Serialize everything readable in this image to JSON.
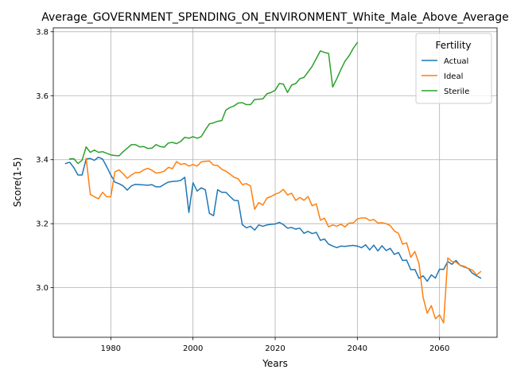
{
  "chart_data": {
    "type": "line",
    "title": "Average_GOVERNMENT_SPENDING_ON_ENVIRONMENT_White_Male_Above_Average",
    "xlabel": "Years",
    "ylabel": "Score(1-5)",
    "xlim": [
      1966,
      2074
    ],
    "ylim": [
      2.845,
      3.812
    ],
    "xticks": [
      1980,
      2000,
      2020,
      2040,
      2060
    ],
    "yticks": [
      3.0,
      3.2,
      3.4,
      3.6,
      3.8
    ],
    "grid": true,
    "legend": {
      "title": "Fertility",
      "placement": "top-right"
    },
    "series": [
      {
        "name": "Actual",
        "color": "#1f77b4",
        "x": [
          1969,
          1970,
          1971,
          1972,
          1973,
          1974,
          1975,
          1976,
          1977,
          1978,
          1979,
          1980,
          1981,
          1982,
          1983,
          1984,
          1985,
          1986,
          1987,
          1988,
          1989,
          1990,
          1991,
          1992,
          1993,
          1994,
          1995,
          1996,
          1997,
          1998,
          1999,
          2000,
          2001,
          2002,
          2003,
          2004,
          2005,
          2006,
          2007,
          2008,
          2009,
          2010,
          2011,
          2012,
          2013,
          2014,
          2015,
          2016,
          2017,
          2018,
          2019,
          2020,
          2021,
          2022,
          2023,
          2024,
          2025,
          2026,
          2027,
          2028,
          2029,
          2030,
          2031,
          2032,
          2033,
          2034,
          2035,
          2036,
          2037,
          2038,
          2039,
          2040,
          2041,
          2042,
          2043,
          2044,
          2045,
          2046,
          2047,
          2048,
          2049,
          2050,
          2051,
          2052,
          2053,
          2054,
          2055,
          2056,
          2057,
          2058,
          2059,
          2060,
          2061,
          2062,
          2063,
          2064,
          2065,
          2066,
          2067,
          2068,
          2069,
          2070
        ],
        "y": [
          3.388,
          3.392,
          3.375,
          3.352,
          3.352,
          3.402,
          3.404,
          3.398,
          3.408,
          3.402,
          3.378,
          3.352,
          3.33,
          3.325,
          3.318,
          3.305,
          3.318,
          3.323,
          3.322,
          3.321,
          3.32,
          3.322,
          3.315,
          3.315,
          3.323,
          3.33,
          3.332,
          3.333,
          3.335,
          3.345,
          3.235,
          3.328,
          3.302,
          3.312,
          3.306,
          3.232,
          3.225,
          3.306,
          3.298,
          3.298,
          3.285,
          3.273,
          3.272,
          3.197,
          3.187,
          3.192,
          3.18,
          3.196,
          3.192,
          3.196,
          3.198,
          3.199,
          3.204,
          3.197,
          3.186,
          3.188,
          3.183,
          3.186,
          3.17,
          3.176,
          3.169,
          3.173,
          3.148,
          3.152,
          3.136,
          3.13,
          3.125,
          3.13,
          3.129,
          3.131,
          3.132,
          3.13,
          3.125,
          3.134,
          3.118,
          3.133,
          3.115,
          3.131,
          3.116,
          3.123,
          3.104,
          3.11,
          3.085,
          3.086,
          3.056,
          3.057,
          3.029,
          3.037,
          3.02,
          3.04,
          3.03,
          3.058,
          3.057,
          3.082,
          3.073,
          3.085,
          3.07,
          3.065,
          3.06,
          3.045,
          3.037,
          3.03
        ]
      },
      {
        "name": "Ideal",
        "color": "#ff7f0e",
        "x": [
          1974,
          1975,
          1976,
          1977,
          1978,
          1979,
          1980,
          1981,
          1982,
          1983,
          1984,
          1985,
          1986,
          1987,
          1988,
          1989,
          1990,
          1991,
          1992,
          1993,
          1994,
          1995,
          1996,
          1997,
          1998,
          1999,
          2000,
          2001,
          2002,
          2003,
          2004,
          2005,
          2006,
          2007,
          2008,
          2009,
          2010,
          2011,
          2012,
          2013,
          2014,
          2015,
          2016,
          2017,
          2018,
          2019,
          2020,
          2021,
          2022,
          2023,
          2024,
          2025,
          2026,
          2027,
          2028,
          2029,
          2030,
          2031,
          2032,
          2033,
          2034,
          2035,
          2036,
          2037,
          2038,
          2039,
          2040,
          2041,
          2042,
          2043,
          2044,
          2045,
          2046,
          2047,
          2048,
          2049,
          2050,
          2051,
          2052,
          2053,
          2054,
          2055,
          2056,
          2057,
          2058,
          2059,
          2060,
          2061,
          2062,
          2063,
          2064,
          2065,
          2066,
          2067,
          2068,
          2069,
          2070
        ],
        "y": [
          3.404,
          3.292,
          3.284,
          3.278,
          3.298,
          3.284,
          3.284,
          3.362,
          3.368,
          3.356,
          3.342,
          3.352,
          3.36,
          3.36,
          3.368,
          3.373,
          3.367,
          3.358,
          3.36,
          3.364,
          3.376,
          3.372,
          3.394,
          3.385,
          3.388,
          3.38,
          3.385,
          3.38,
          3.393,
          3.395,
          3.396,
          3.383,
          3.382,
          3.37,
          3.364,
          3.355,
          3.345,
          3.34,
          3.322,
          3.325,
          3.318,
          3.245,
          3.266,
          3.258,
          3.28,
          3.285,
          3.292,
          3.297,
          3.307,
          3.29,
          3.295,
          3.273,
          3.282,
          3.273,
          3.285,
          3.256,
          3.262,
          3.211,
          3.217,
          3.19,
          3.196,
          3.192,
          3.198,
          3.19,
          3.202,
          3.202,
          3.215,
          3.218,
          3.218,
          3.21,
          3.213,
          3.202,
          3.203,
          3.2,
          3.194,
          3.177,
          3.17,
          3.136,
          3.14,
          3.095,
          3.113,
          3.075,
          2.97,
          2.92,
          2.944,
          2.903,
          2.915,
          2.89,
          3.093,
          3.082,
          3.08,
          3.07,
          3.067,
          3.06,
          3.055,
          3.04,
          3.05
        ]
      },
      {
        "name": "Sterile",
        "color": "#2ca02c",
        "x": [
          1970,
          1971,
          1972,
          1973,
          1974,
          1975,
          1976,
          1977,
          1978,
          1979,
          1980,
          1981,
          1982,
          1983,
          1984,
          1985,
          1986,
          1987,
          1988,
          1989,
          1990,
          1991,
          1992,
          1993,
          1994,
          1995,
          1996,
          1997,
          1998,
          1999,
          2000,
          2001,
          2002,
          2003,
          2004,
          2005,
          2006,
          2007,
          2008,
          2009,
          2010,
          2011,
          2012,
          2013,
          2014,
          2015,
          2016,
          2017,
          2018,
          2019,
          2020,
          2021,
          2022,
          2023,
          2024,
          2025,
          2026,
          2027,
          2028,
          2029,
          2030,
          2031,
          2032,
          2033,
          2034,
          2035,
          2036,
          2037,
          2038,
          2039,
          2040
        ],
        "y": [
          3.402,
          3.403,
          3.388,
          3.398,
          3.44,
          3.423,
          3.43,
          3.423,
          3.425,
          3.42,
          3.415,
          3.413,
          3.412,
          3.425,
          3.436,
          3.447,
          3.447,
          3.44,
          3.441,
          3.435,
          3.436,
          3.447,
          3.441,
          3.439,
          3.452,
          3.454,
          3.45,
          3.457,
          3.47,
          3.467,
          3.472,
          3.467,
          3.472,
          3.493,
          3.512,
          3.515,
          3.52,
          3.522,
          3.555,
          3.563,
          3.568,
          3.577,
          3.578,
          3.572,
          3.572,
          3.588,
          3.589,
          3.59,
          3.606,
          3.61,
          3.617,
          3.638,
          3.636,
          3.61,
          3.633,
          3.638,
          3.653,
          3.657,
          3.674,
          3.692,
          3.716,
          3.74,
          3.735,
          3.732,
          3.627,
          3.653,
          3.682,
          3.708,
          3.725,
          3.748,
          3.766
        ]
      }
    ]
  }
}
